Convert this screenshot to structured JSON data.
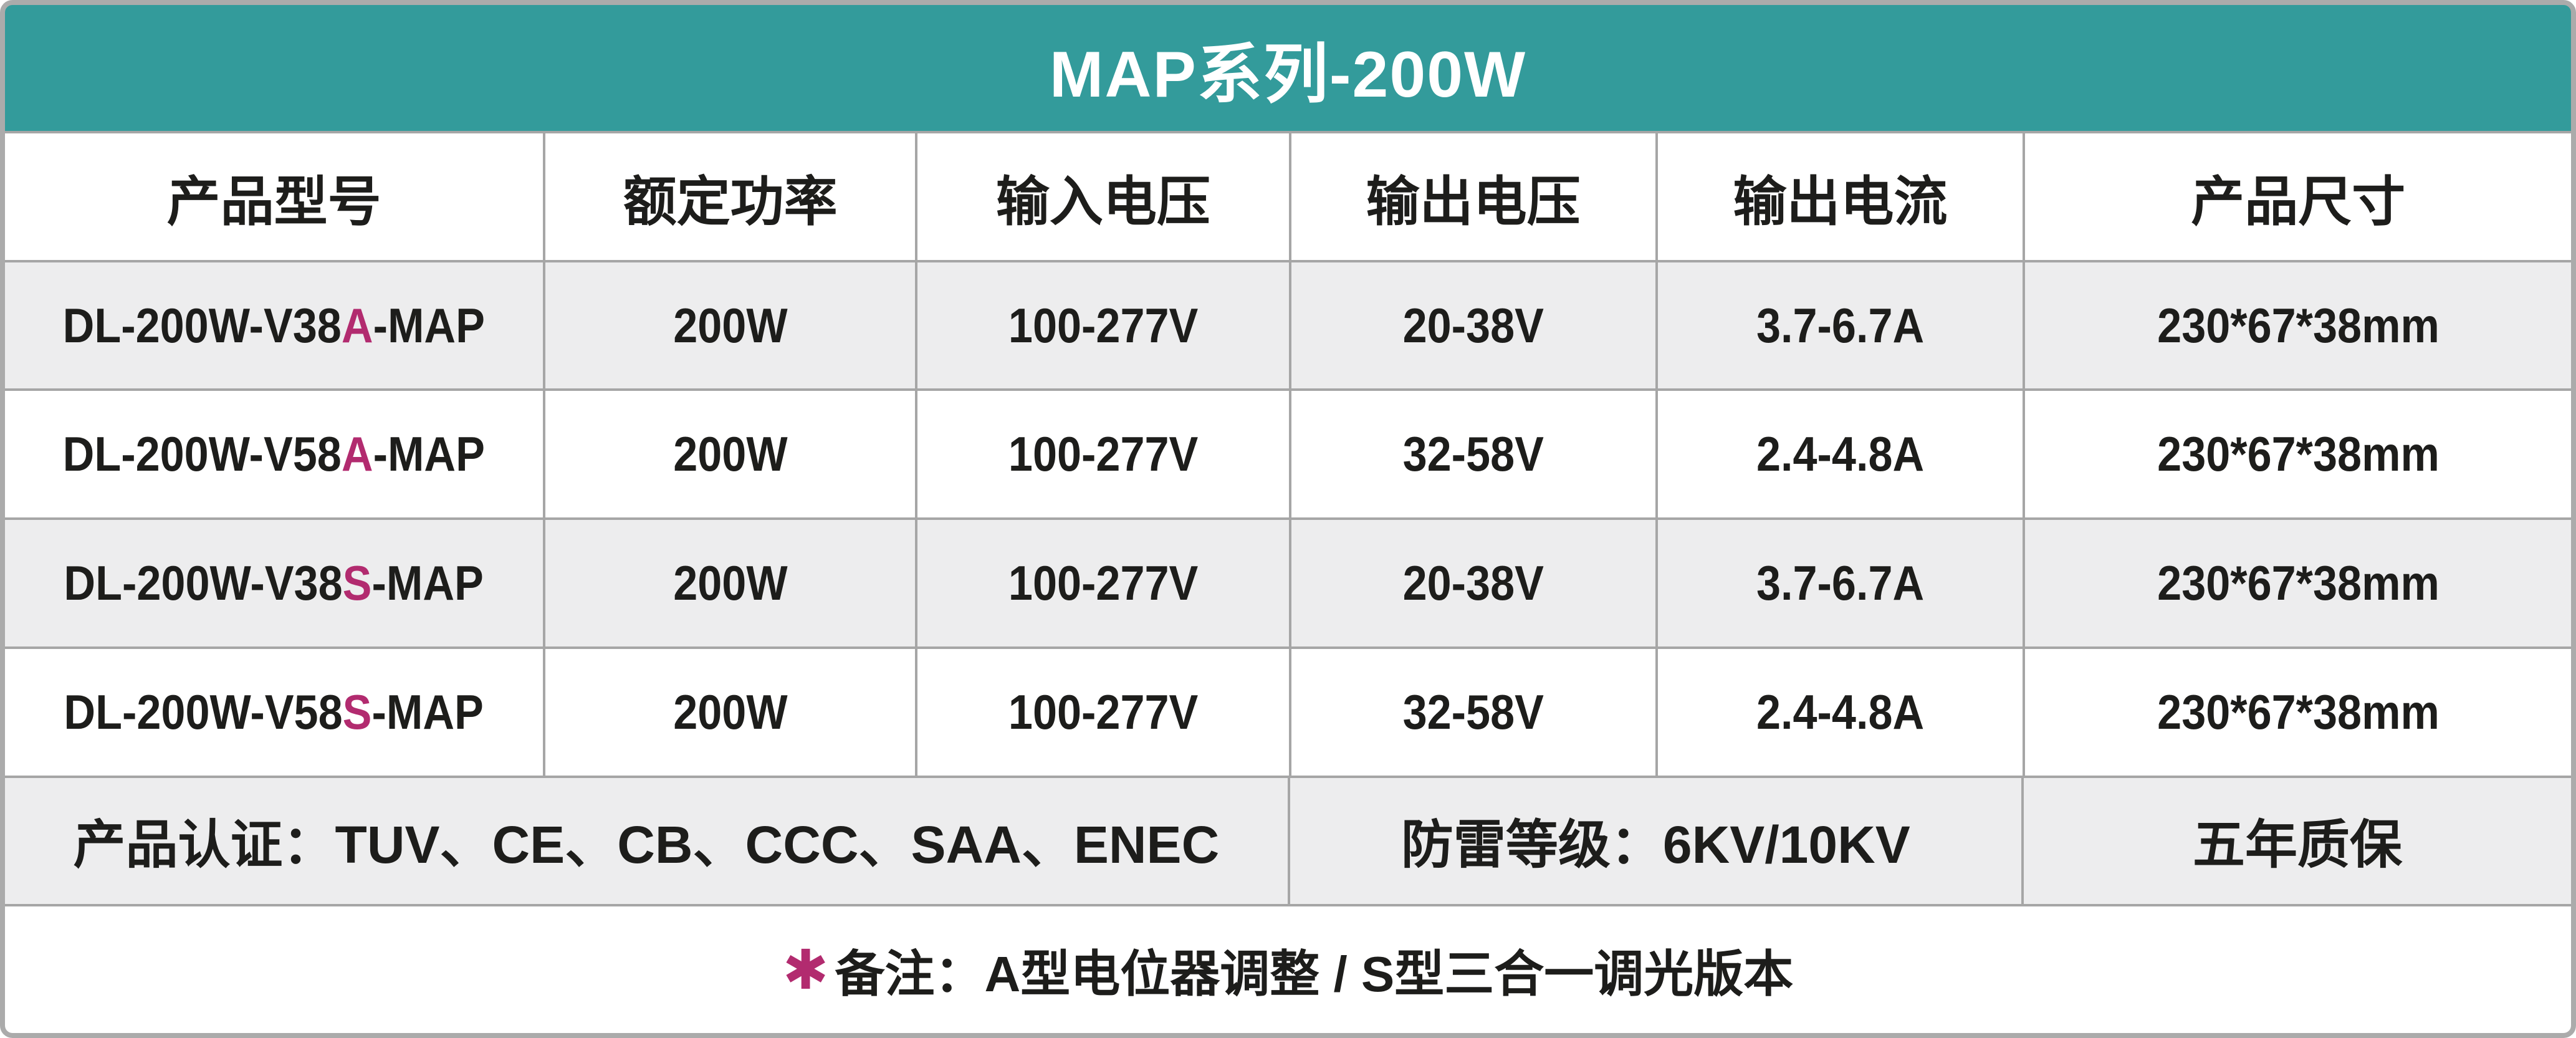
{
  "title": "MAP系列-200W",
  "table": {
    "headers": [
      "产品型号",
      "额定功率",
      "输入电压",
      "输出电压",
      "输出电流",
      "产品尺寸"
    ],
    "rows": [
      {
        "model_prefix": "DL-200W-V38",
        "model_variant": "A",
        "model_suffix": "-MAP",
        "power": "200W",
        "input_voltage": "100-277V",
        "output_voltage": "20-38V",
        "output_current": "3.7-6.7A",
        "size": "230*67*38mm"
      },
      {
        "model_prefix": "DL-200W-V58",
        "model_variant": "A",
        "model_suffix": "-MAP",
        "power": "200W",
        "input_voltage": "100-277V",
        "output_voltage": "32-58V",
        "output_current": "2.4-4.8A",
        "size": "230*67*38mm"
      },
      {
        "model_prefix": "DL-200W-V38",
        "model_variant": "S",
        "model_suffix": "-MAP",
        "power": "200W",
        "input_voltage": "100-277V",
        "output_voltage": "20-38V",
        "output_current": "3.7-6.7A",
        "size": "230*67*38mm"
      },
      {
        "model_prefix": "DL-200W-V58",
        "model_variant": "S",
        "model_suffix": "-MAP",
        "power": "200W",
        "input_voltage": "100-277V",
        "output_voltage": "32-58V",
        "output_current": "2.4-4.8A",
        "size": "230*67*38mm"
      }
    ],
    "footer": {
      "certification": "产品认证：TUV、CE、CB、CCC、SAA、ENEC",
      "surge": "防雷等级：6KV/10KV",
      "warranty": "五年质保"
    },
    "note": {
      "asterisk": "✱",
      "text": "备注：A型电位器调整 / S型三合一调光版本"
    }
  },
  "colors": {
    "banner_teal": "#339B9B",
    "accent_magenta": "#B22B6F",
    "row_alt_gray": "#EDEDEE",
    "border_gray": "#ABABAB",
    "text_black": "#1D1D1B"
  }
}
